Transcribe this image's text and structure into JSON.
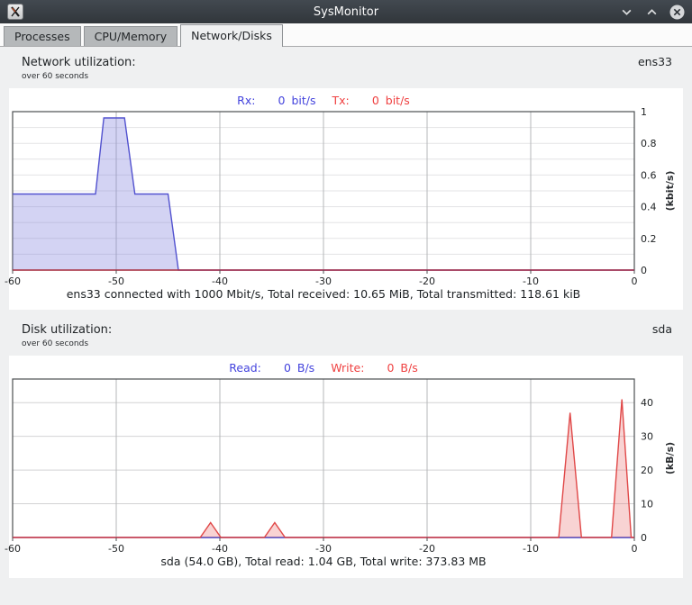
{
  "window": {
    "title": "SysMonitor",
    "app_icon": "xterm-x-icon",
    "controls": {
      "minimize_icon": "chevron-down",
      "maximize_icon": "chevron-up",
      "close_icon": "circle-x"
    }
  },
  "tabs": [
    {
      "label": "Processes",
      "active": false
    },
    {
      "label": "CPU/Memory",
      "active": false
    },
    {
      "label": "Network/Disks",
      "active": true
    }
  ],
  "colors": {
    "rx_blue": "#4343dd",
    "tx_red": "#ef4040",
    "read_blue": "#4343dd",
    "write_red": "#ef4040",
    "net_area_stroke": "#5252cf",
    "net_area_fill": "rgba(128,128,220,0.35)",
    "disk_area_stroke": "#e04848",
    "disk_area_fill": "rgba(236,128,128,0.35)"
  },
  "network_section": {
    "title": "Network utilization:",
    "subtitle": "over 60 seconds",
    "interface": "ens33",
    "legend": {
      "rx_label": "Rx:",
      "rx_value": "0",
      "rx_unit": "bit/s",
      "tx_label": "Tx:",
      "tx_value": "0",
      "tx_unit": "bit/s"
    },
    "caption": "ens33 connected with 1000 Mbit/s, Total received: 10.65 MiB, Total transmitted: 118.61 kiB"
  },
  "disk_section": {
    "title": "Disk utilization:",
    "subtitle": "over 60 seconds",
    "device": "sda",
    "legend": {
      "read_label": "Read:",
      "read_value": "0",
      "read_unit": "B/s",
      "write_label": "Write:",
      "write_value": "0",
      "write_unit": "B/s"
    },
    "caption": "sda (54.0 GB), Total read: 1.04 GB, Total write: 373.83 MB"
  },
  "chart_data": [
    {
      "id": "network",
      "type": "area",
      "title": "Network utilization over 60 seconds",
      "xlim": [
        -60,
        0
      ],
      "ylim": [
        0,
        1
      ],
      "x_tick_values": [
        -60,
        -50,
        -40,
        -30,
        -20,
        -10,
        0
      ],
      "x_tick_labels": [
        "-60",
        "-50",
        "-40",
        "-30",
        "-20",
        "-10",
        "0"
      ],
      "y_tick_values": [
        0,
        0.2,
        0.4,
        0.6,
        0.8,
        1
      ],
      "y_tick_labels": [
        "0",
        "0.2",
        "0.4",
        "0.6",
        "0.8",
        "1"
      ],
      "y_grid_step": 0.1,
      "h_grid_color": "#e3e3e5",
      "ylabel": "(kbit/s)",
      "series": [
        {
          "name": "Rx",
          "color": "#5252cf",
          "fill": "rgba(128,128,220,0.35)",
          "points": [
            [
              -60,
              0.48
            ],
            [
              -52,
              0.48
            ],
            [
              -51.2,
              0.96
            ],
            [
              -49.2,
              0.96
            ],
            [
              -48.2,
              0.48
            ],
            [
              -45,
              0.48
            ],
            [
              -44,
              0
            ],
            [
              0,
              0
            ]
          ]
        },
        {
          "name": "Tx",
          "color": "#b03245",
          "fill": "none",
          "points": [
            [
              -60,
              0
            ],
            [
              0,
              0
            ]
          ]
        }
      ]
    },
    {
      "id": "disk",
      "type": "area",
      "title": "Disk utilization over 60 seconds",
      "xlim": [
        -60,
        0
      ],
      "ylim": [
        0,
        47
      ],
      "x_tick_values": [
        -60,
        -50,
        -40,
        -30,
        -20,
        -10,
        0
      ],
      "x_tick_labels": [
        "-60",
        "-50",
        "-40",
        "-30",
        "-20",
        "-10",
        "0"
      ],
      "y_tick_values": [
        0,
        10,
        20,
        30,
        40
      ],
      "y_tick_labels": [
        "0",
        "10",
        "20",
        "30",
        "40"
      ],
      "y_grid_step": 10,
      "h_grid_color": "#d2d2d4",
      "ylabel": "(kB/s)",
      "series": [
        {
          "name": "Read",
          "color": "#3c3cc8",
          "fill": "none",
          "points": [
            [
              -60,
              0
            ],
            [
              0,
              0
            ]
          ]
        },
        {
          "name": "Write",
          "color": "#e04848",
          "fill": "rgba(236,128,128,0.35)",
          "points": [
            [
              -60,
              0
            ],
            [
              -41.9,
              0
            ],
            [
              -40.9,
              4.4
            ],
            [
              -39.9,
              0
            ],
            [
              -35.7,
              0
            ],
            [
              -34.7,
              4.4
            ],
            [
              -33.7,
              0
            ],
            [
              -7.3,
              0
            ],
            [
              -6.2,
              37
            ],
            [
              -5.1,
              0
            ],
            [
              -2.2,
              0
            ],
            [
              -1.2,
              41
            ],
            [
              -0.3,
              0
            ],
            [
              0,
              0
            ]
          ]
        }
      ]
    }
  ]
}
